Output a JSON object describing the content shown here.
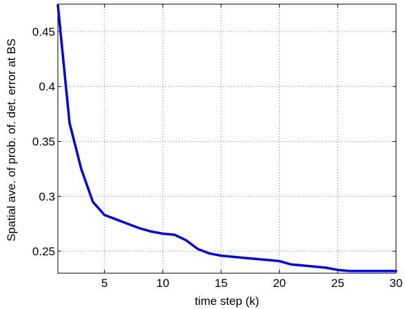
{
  "chart_data": {
    "type": "line",
    "title": "",
    "xlabel": "time step (k)",
    "ylabel": "Spatial ave. of prob. of. det. error at BS",
    "xlim": [
      1,
      30
    ],
    "ylim": [
      0.23,
      0.475
    ],
    "grid": true,
    "line_color": "#0000ee",
    "xticks": [
      5,
      10,
      15,
      20,
      25,
      30
    ],
    "xtick_labels": [
      "5",
      "10",
      "15",
      "20",
      "25",
      "30"
    ],
    "yticks": [
      0.25,
      0.3,
      0.35,
      0.4,
      0.45
    ],
    "ytick_labels": [
      "0.25",
      "0.3",
      "0.35",
      "0.4",
      "0.45"
    ],
    "series": [
      {
        "x": [
          1,
          2,
          3,
          4,
          5,
          6,
          7,
          8,
          9,
          10,
          11,
          12,
          13,
          14,
          15,
          16,
          17,
          18,
          19,
          20,
          21,
          22,
          23,
          24,
          25,
          26,
          27,
          28,
          29,
          30
        ],
        "values": [
          0.474,
          0.367,
          0.325,
          0.295,
          0.283,
          0.279,
          0.275,
          0.271,
          0.268,
          0.266,
          0.265,
          0.26,
          0.252,
          0.248,
          0.246,
          0.245,
          0.244,
          0.243,
          0.242,
          0.241,
          0.238,
          0.237,
          0.236,
          0.235,
          0.233,
          0.232,
          0.232,
          0.232,
          0.232,
          0.232
        ]
      }
    ]
  }
}
